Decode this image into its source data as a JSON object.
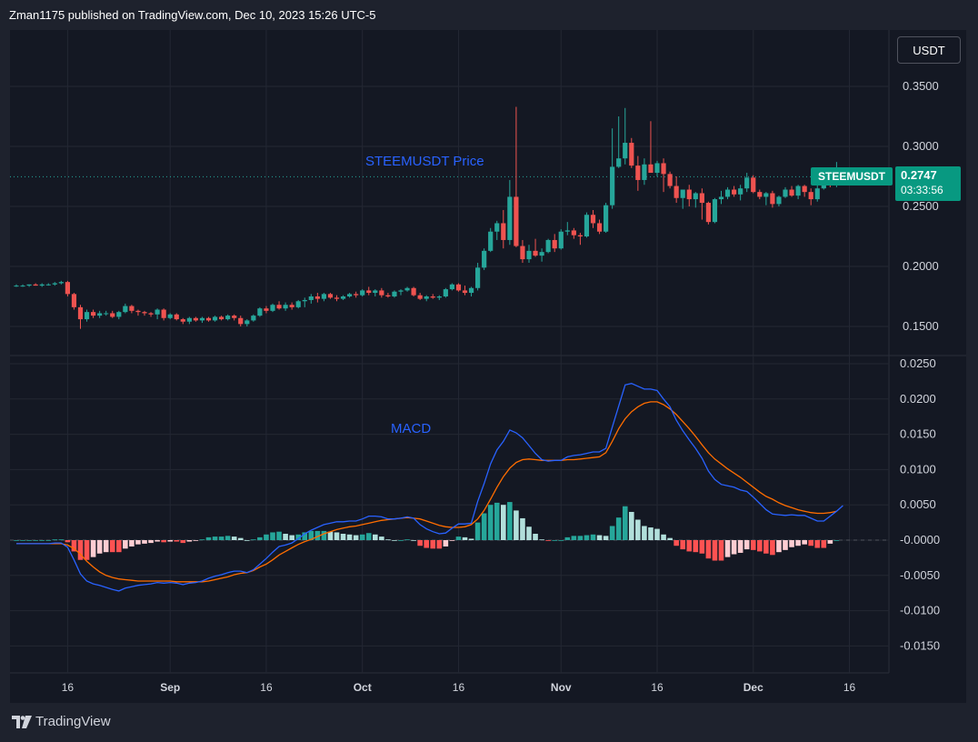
{
  "header": {
    "text": "Zman1175 published on TradingView.com, Dec 10, 2023 15:26 UTC-5"
  },
  "footer": {
    "brand": "TradingView"
  },
  "currency_button": "USDT",
  "price_tag": {
    "symbol": "STEEMUSDT",
    "value": "0.2747",
    "countdown": "03:33:56"
  },
  "colors": {
    "up": "#26a69a",
    "down": "#ef5350",
    "macd": "#2962ff",
    "signal": "#ff6d00",
    "hist_up_strong": "#26a69a",
    "hist_up_weak": "#b2dfdb",
    "hist_down_strong": "#ff5252",
    "hist_down_weak": "#ffcdd2"
  },
  "chart_data": [
    {
      "type": "candlestick",
      "label": "STEEMUSDT Price",
      "ylim": [
        0.13,
        0.36
      ],
      "y_ticks": [
        "0.3500",
        "0.3000",
        "0.2500",
        "0.2000",
        "0.1500"
      ],
      "last_price": 0.2747,
      "ohlc": [
        [
          0.184,
          0.185,
          0.183,
          0.184
        ],
        [
          0.184,
          0.185,
          0.183,
          0.184
        ],
        [
          0.184,
          0.185,
          0.183,
          0.185
        ],
        [
          0.185,
          0.186,
          0.184,
          0.184
        ],
        [
          0.184,
          0.186,
          0.183,
          0.185
        ],
        [
          0.185,
          0.186,
          0.184,
          0.185
        ],
        [
          0.185,
          0.187,
          0.184,
          0.186
        ],
        [
          0.186,
          0.188,
          0.185,
          0.187
        ],
        [
          0.187,
          0.188,
          0.175,
          0.177
        ],
        [
          0.177,
          0.178,
          0.164,
          0.166
        ],
        [
          0.166,
          0.168,
          0.148,
          0.156
        ],
        [
          0.156,
          0.164,
          0.154,
          0.162
        ],
        [
          0.162,
          0.164,
          0.157,
          0.159
        ],
        [
          0.159,
          0.163,
          0.157,
          0.161
        ],
        [
          0.161,
          0.163,
          0.159,
          0.161
        ],
        [
          0.161,
          0.163,
          0.157,
          0.158
        ],
        [
          0.158,
          0.163,
          0.156,
          0.162
        ],
        [
          0.162,
          0.169,
          0.161,
          0.167
        ],
        [
          0.167,
          0.168,
          0.161,
          0.163
        ],
        [
          0.163,
          0.164,
          0.159,
          0.162
        ],
        [
          0.162,
          0.163,
          0.159,
          0.161
        ],
        [
          0.161,
          0.162,
          0.158,
          0.16
        ],
        [
          0.16,
          0.165,
          0.156,
          0.164
        ],
        [
          0.164,
          0.165,
          0.155,
          0.157
        ],
        [
          0.157,
          0.161,
          0.156,
          0.16
        ],
        [
          0.16,
          0.161,
          0.155,
          0.156
        ],
        [
          0.156,
          0.157,
          0.152,
          0.154
        ],
        [
          0.154,
          0.158,
          0.152,
          0.157
        ],
        [
          0.157,
          0.158,
          0.154,
          0.155
        ],
        [
          0.155,
          0.158,
          0.153,
          0.157
        ],
        [
          0.157,
          0.158,
          0.154,
          0.155
        ],
        [
          0.155,
          0.159,
          0.154,
          0.158
        ],
        [
          0.158,
          0.159,
          0.155,
          0.156
        ],
        [
          0.156,
          0.16,
          0.155,
          0.159
        ],
        [
          0.159,
          0.16,
          0.155,
          0.157
        ],
        [
          0.157,
          0.159,
          0.15,
          0.152
        ],
        [
          0.152,
          0.156,
          0.15,
          0.155
        ],
        [
          0.155,
          0.16,
          0.154,
          0.159
        ],
        [
          0.159,
          0.166,
          0.158,
          0.165
        ],
        [
          0.165,
          0.167,
          0.161,
          0.163
        ],
        [
          0.163,
          0.169,
          0.162,
          0.168
        ],
        [
          0.168,
          0.171,
          0.164,
          0.165
        ],
        [
          0.165,
          0.17,
          0.163,
          0.168
        ],
        [
          0.168,
          0.17,
          0.164,
          0.166
        ],
        [
          0.166,
          0.172,
          0.165,
          0.171
        ],
        [
          0.171,
          0.174,
          0.166,
          0.172
        ],
        [
          0.172,
          0.177,
          0.169,
          0.175
        ],
        [
          0.175,
          0.178,
          0.17,
          0.173
        ],
        [
          0.173,
          0.178,
          0.171,
          0.177
        ],
        [
          0.177,
          0.178,
          0.173,
          0.174
        ],
        [
          0.174,
          0.176,
          0.171,
          0.173
        ],
        [
          0.173,
          0.176,
          0.172,
          0.175
        ],
        [
          0.175,
          0.178,
          0.174,
          0.177
        ],
        [
          0.177,
          0.179,
          0.174,
          0.176
        ],
        [
          0.176,
          0.181,
          0.175,
          0.18
        ],
        [
          0.18,
          0.183,
          0.176,
          0.178
        ],
        [
          0.178,
          0.181,
          0.175,
          0.18
        ],
        [
          0.18,
          0.182,
          0.174,
          0.176
        ],
        [
          0.176,
          0.178,
          0.174,
          0.175
        ],
        [
          0.175,
          0.18,
          0.174,
          0.179
        ],
        [
          0.179,
          0.181,
          0.176,
          0.18
        ],
        [
          0.18,
          0.183,
          0.179,
          0.182
        ],
        [
          0.182,
          0.183,
          0.175,
          0.176
        ],
        [
          0.176,
          0.178,
          0.172,
          0.173
        ],
        [
          0.173,
          0.176,
          0.171,
          0.175
        ],
        [
          0.175,
          0.177,
          0.173,
          0.174
        ],
        [
          0.174,
          0.176,
          0.172,
          0.175
        ],
        [
          0.175,
          0.182,
          0.174,
          0.181
        ],
        [
          0.181,
          0.186,
          0.18,
          0.185
        ],
        [
          0.185,
          0.186,
          0.179,
          0.18
        ],
        [
          0.18,
          0.184,
          0.176,
          0.178
        ],
        [
          0.178,
          0.183,
          0.175,
          0.182
        ],
        [
          0.182,
          0.203,
          0.18,
          0.199
        ],
        [
          0.199,
          0.215,
          0.197,
          0.213
        ],
        [
          0.213,
          0.232,
          0.212,
          0.229
        ],
        [
          0.229,
          0.238,
          0.222,
          0.236
        ],
        [
          0.236,
          0.247,
          0.215,
          0.222
        ],
        [
          0.222,
          0.272,
          0.218,
          0.258
        ],
        [
          0.258,
          0.333,
          0.216,
          0.217
        ],
        [
          0.217,
          0.222,
          0.203,
          0.206
        ],
        [
          0.206,
          0.218,
          0.203,
          0.213
        ],
        [
          0.213,
          0.223,
          0.208,
          0.209
        ],
        [
          0.209,
          0.215,
          0.204,
          0.212
        ],
        [
          0.212,
          0.223,
          0.211,
          0.222
        ],
        [
          0.222,
          0.227,
          0.212,
          0.215
        ],
        [
          0.215,
          0.231,
          0.214,
          0.229
        ],
        [
          0.229,
          0.237,
          0.226,
          0.23
        ],
        [
          0.23,
          0.232,
          0.223,
          0.226
        ],
        [
          0.226,
          0.228,
          0.218,
          0.225
        ],
        [
          0.225,
          0.245,
          0.224,
          0.243
        ],
        [
          0.243,
          0.247,
          0.232,
          0.236
        ],
        [
          0.236,
          0.239,
          0.227,
          0.229
        ],
        [
          0.229,
          0.253,
          0.228,
          0.251
        ],
        [
          0.251,
          0.315,
          0.248,
          0.283
        ],
        [
          0.283,
          0.325,
          0.282,
          0.29
        ],
        [
          0.29,
          0.332,
          0.285,
          0.303
        ],
        [
          0.303,
          0.307,
          0.282,
          0.284
        ],
        [
          0.284,
          0.292,
          0.263,
          0.272
        ],
        [
          0.272,
          0.29,
          0.268,
          0.285
        ],
        [
          0.285,
          0.321,
          0.279,
          0.278
        ],
        [
          0.278,
          0.288,
          0.275,
          0.286
        ],
        [
          0.286,
          0.29,
          0.262,
          0.277
        ],
        [
          0.277,
          0.279,
          0.265,
          0.267
        ],
        [
          0.267,
          0.275,
          0.253,
          0.257
        ],
        [
          0.257,
          0.264,
          0.248,
          0.264
        ],
        [
          0.264,
          0.268,
          0.25,
          0.256
        ],
        [
          0.256,
          0.262,
          0.249,
          0.261
        ],
        [
          0.261,
          0.265,
          0.239,
          0.253
        ],
        [
          0.253,
          0.254,
          0.235,
          0.237
        ],
        [
          0.237,
          0.257,
          0.236,
          0.256
        ],
        [
          0.256,
          0.263,
          0.252,
          0.258
        ],
        [
          0.258,
          0.266,
          0.256,
          0.264
        ],
        [
          0.264,
          0.267,
          0.258,
          0.26
        ],
        [
          0.26,
          0.268,
          0.255,
          0.265
        ],
        [
          0.265,
          0.278,
          0.262,
          0.274
        ],
        [
          0.274,
          0.276,
          0.261,
          0.262
        ],
        [
          0.262,
          0.264,
          0.256,
          0.258
        ],
        [
          0.258,
          0.262,
          0.251,
          0.261
        ],
        [
          0.261,
          0.263,
          0.249,
          0.252
        ],
        [
          0.252,
          0.259,
          0.25,
          0.258
        ],
        [
          0.258,
          0.266,
          0.257,
          0.264
        ],
        [
          0.264,
          0.267,
          0.258,
          0.259
        ],
        [
          0.259,
          0.268,
          0.256,
          0.267
        ],
        [
          0.267,
          0.268,
          0.258,
          0.262
        ],
        [
          0.262,
          0.265,
          0.251,
          0.256
        ],
        [
          0.256,
          0.269,
          0.254,
          0.265
        ],
        [
          0.265,
          0.279,
          0.264,
          0.272
        ],
        [
          0.272,
          0.275,
          0.266,
          0.269
        ],
        [
          0.269,
          0.287,
          0.266,
          0.275
        ]
      ]
    },
    {
      "type": "macd",
      "label": "MACD",
      "ylim": [
        -0.0175,
        0.0255
      ],
      "y_ticks": [
        "0.0250",
        "0.0200",
        "0.0150",
        "0.0100",
        "0.0050",
        "-0.0000",
        "-0.0050",
        "-0.0100",
        "-0.0150"
      ],
      "x_labels": [
        {
          "label": "16",
          "index": 8
        },
        {
          "label": "Sep",
          "index": 24
        },
        {
          "label": "16",
          "index": 39
        },
        {
          "label": "Oct",
          "index": 54
        },
        {
          "label": "16",
          "index": 69
        },
        {
          "label": "Nov",
          "index": 85
        },
        {
          "label": "16",
          "index": 100
        },
        {
          "label": "Dec",
          "index": 115
        },
        {
          "label": "16",
          "index": 130
        }
      ],
      "macd": [
        -0.0005,
        -0.0005,
        -0.0005,
        -0.0005,
        -0.0005,
        -0.0005,
        -0.0004,
        -0.0004,
        -0.001,
        -0.0028,
        -0.0048,
        -0.0058,
        -0.0062,
        -0.0064,
        -0.0067,
        -0.007,
        -0.0072,
        -0.0068,
        -0.0066,
        -0.0064,
        -0.0063,
        -0.0062,
        -0.006,
        -0.0061,
        -0.006,
        -0.0061,
        -0.0063,
        -0.0061,
        -0.006,
        -0.0058,
        -0.0054,
        -0.0051,
        -0.0049,
        -0.0046,
        -0.0044,
        -0.0044,
        -0.0046,
        -0.0042,
        -0.0034,
        -0.0026,
        -0.0017,
        -0.0009,
        -0.0007,
        -0.0004,
        0.0002,
        0.0009,
        0.0014,
        0.0018,
        0.0022,
        0.0024,
        0.0026,
        0.0026,
        0.0027,
        0.0027,
        0.003,
        0.0034,
        0.0034,
        0.0033,
        0.003,
        0.003,
        0.0031,
        0.0033,
        0.0031,
        0.0022,
        0.0016,
        0.0012,
        0.0009,
        0.001,
        0.0017,
        0.0023,
        0.0023,
        0.0024,
        0.0055,
        0.008,
        0.0108,
        0.0128,
        0.014,
        0.0156,
        0.0152,
        0.0145,
        0.0134,
        0.0123,
        0.0114,
        0.0112,
        0.0113,
        0.0113,
        0.0118,
        0.012,
        0.0121,
        0.0123,
        0.0125,
        0.0125,
        0.013,
        0.016,
        0.019,
        0.022,
        0.0222,
        0.0218,
        0.0214,
        0.0214,
        0.0212,
        0.02,
        0.0189,
        0.017,
        0.0155,
        0.0142,
        0.013,
        0.0116,
        0.0098,
        0.0086,
        0.0079,
        0.0077,
        0.0075,
        0.0071,
        0.0069,
        0.0061,
        0.0052,
        0.0043,
        0.0037,
        0.0036,
        0.0035,
        0.0036,
        0.0035,
        0.0035,
        0.0031,
        0.0027,
        0.0027,
        0.0034,
        0.0041,
        0.0049
      ],
      "signal": [
        -0.0005,
        -0.0005,
        -0.0005,
        -0.0005,
        -0.0005,
        -0.0005,
        -0.0005,
        -0.0005,
        -0.0007,
        -0.0012,
        -0.002,
        -0.003,
        -0.0038,
        -0.0045,
        -0.005,
        -0.0053,
        -0.0055,
        -0.0056,
        -0.0057,
        -0.0058,
        -0.0058,
        -0.0058,
        -0.0058,
        -0.0058,
        -0.0058,
        -0.0059,
        -0.0059,
        -0.0059,
        -0.0059,
        -0.0059,
        -0.0058,
        -0.0056,
        -0.0054,
        -0.0052,
        -0.0049,
        -0.0047,
        -0.0046,
        -0.0043,
        -0.0038,
        -0.0034,
        -0.0028,
        -0.0021,
        -0.0016,
        -0.0011,
        -0.0006,
        -0.0002,
        0.0001,
        0.0005,
        0.0009,
        0.0012,
        0.0015,
        0.0017,
        0.0019,
        0.002,
        0.0022,
        0.0024,
        0.0026,
        0.0028,
        0.0029,
        0.003,
        0.0031,
        0.0032,
        0.0031,
        0.003,
        0.0027,
        0.0024,
        0.0021,
        0.0019,
        0.0018,
        0.0018,
        0.0019,
        0.0022,
        0.003,
        0.0042,
        0.0058,
        0.0075,
        0.009,
        0.0102,
        0.011,
        0.0114,
        0.0115,
        0.0114,
        0.0113,
        0.0113,
        0.0113,
        0.0113,
        0.0114,
        0.0114,
        0.0115,
        0.0116,
        0.0117,
        0.0118,
        0.0124,
        0.014,
        0.0158,
        0.0172,
        0.0182,
        0.0189,
        0.0194,
        0.0196,
        0.0196,
        0.0192,
        0.0186,
        0.0178,
        0.0168,
        0.0158,
        0.0147,
        0.0135,
        0.0124,
        0.0115,
        0.0108,
        0.0101,
        0.0095,
        0.0089,
        0.0082,
        0.0075,
        0.0068,
        0.0062,
        0.0058,
        0.0053,
        0.0049,
        0.0046,
        0.0043,
        0.0041,
        0.0039,
        0.0038,
        0.0038,
        0.0039,
        0.0041
      ]
    }
  ]
}
